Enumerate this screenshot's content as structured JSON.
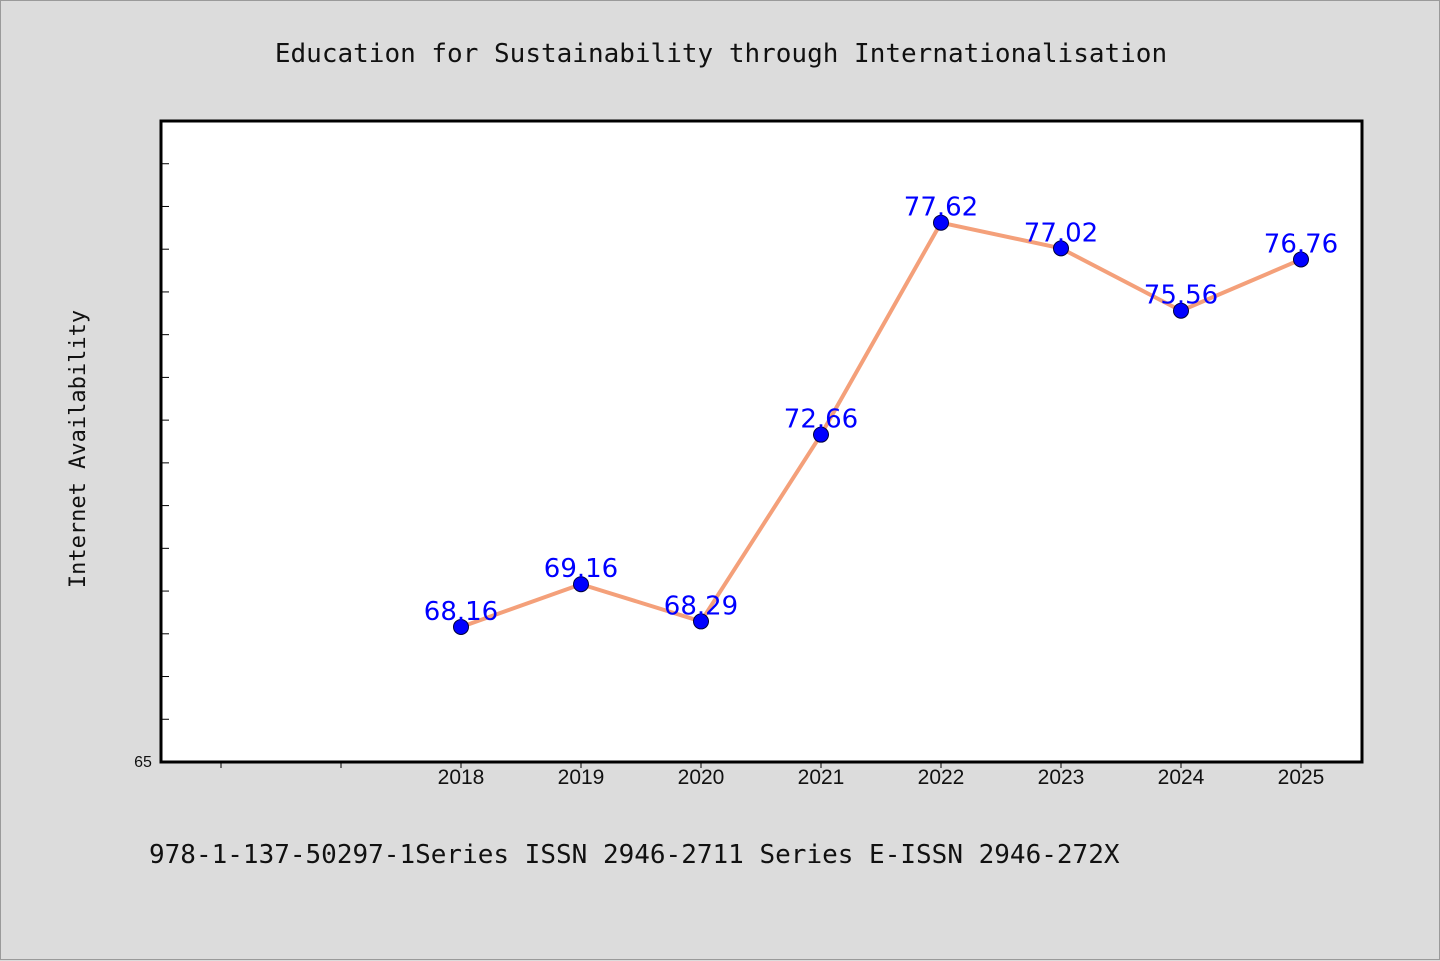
{
  "chart_data": {
    "type": "line",
    "title": "Education for Sustainability through Internationalisation",
    "xlabel": "",
    "ylabel": "Internet Availability",
    "categories": [
      "2018",
      "2019",
      "2020",
      "2021",
      "2022",
      "2023",
      "2024",
      "2025"
    ],
    "series": [
      {
        "values": [
          68.16,
          69.16,
          68.29,
          72.66,
          77.62,
          77.02,
          75.56,
          76.76
        ],
        "data_labels": [
          "68.16",
          "69.16",
          "68.29",
          "72.66",
          "77.62",
          "77.02",
          "75.56",
          "76.76"
        ],
        "line_color": "#f4a07a",
        "marker_color": "#0000ff"
      }
    ],
    "ylim": [
      65,
      80
    ],
    "y_tick_labels": [
      "65"
    ],
    "grid": false,
    "legend": "none",
    "plot_background": "#ffffff",
    "figure_background": "#dcdcdc"
  },
  "footer": {
    "text": "978-1-137-50297-1Series ISSN 2946-2711 Series E-ISSN 2946-272X"
  }
}
